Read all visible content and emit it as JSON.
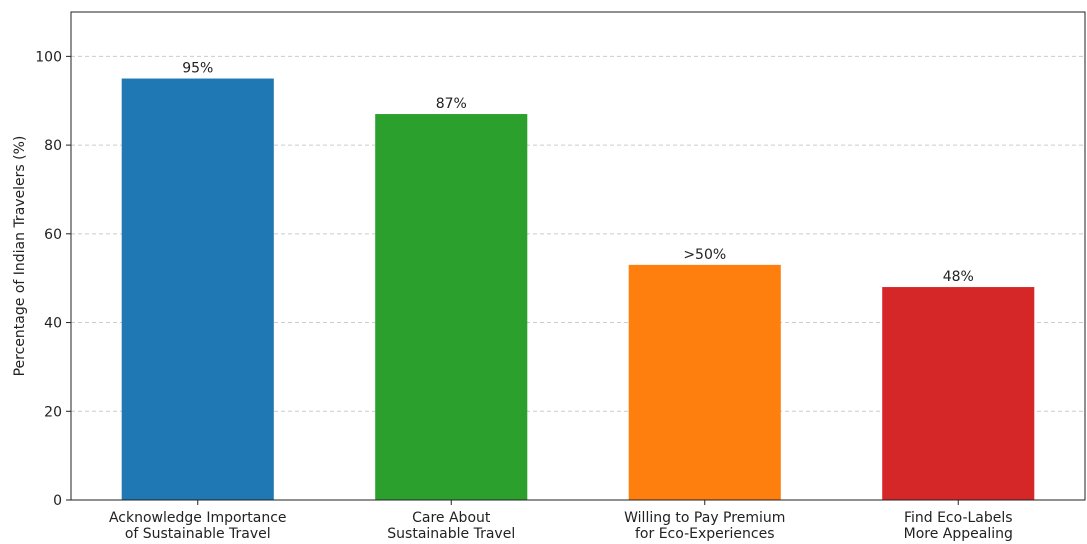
{
  "chart_data": {
    "type": "bar",
    "categories": [
      [
        "Acknowledge Importance",
        "of Sustainable Travel"
      ],
      [
        "Care About",
        "Sustainable Travel"
      ],
      [
        "Willing to Pay Premium",
        "for Eco-Experiences"
      ],
      [
        "Find Eco-Labels",
        "More Appealing"
      ]
    ],
    "values": [
      95,
      87,
      53,
      48
    ],
    "value_labels": [
      "95%",
      "87%",
      ">50%",
      "48%"
    ],
    "colors": [
      "#1f77b4",
      "#2ca02c",
      "#ff7f0e",
      "#d62728"
    ],
    "title": "",
    "xlabel": "",
    "ylabel": "Percentage of Indian Travelers (%)",
    "ylim": [
      0,
      110
    ],
    "yticks": [
      0,
      20,
      40,
      60,
      80,
      100
    ],
    "grid": "y-dashed",
    "legend": "none"
  }
}
